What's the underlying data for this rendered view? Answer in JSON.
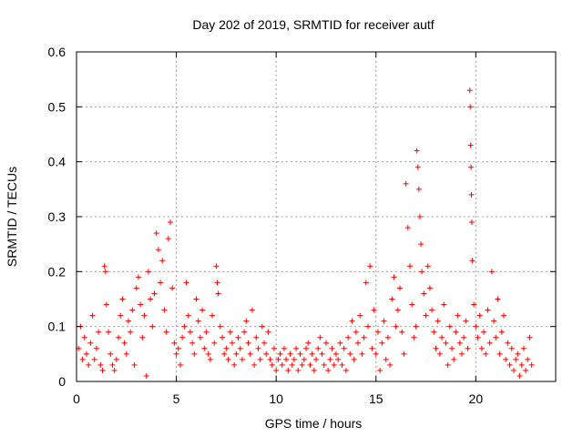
{
  "chart_data": {
    "type": "scatter",
    "title": "Day 202 of 2019, SRMTID for receiver autf",
    "xlabel": "GPS time / hours",
    "ylabel": "SRMTID / TECUs",
    "xlim": [
      0,
      24
    ],
    "ylim": [
      0,
      0.6
    ],
    "xticks": [
      0,
      5,
      10,
      15,
      20
    ],
    "xtick_labels": [
      "0",
      "5",
      "10",
      "15",
      "20"
    ],
    "yticks": [
      0,
      0.1,
      0.2,
      0.3,
      0.4,
      0.5,
      0.6
    ],
    "ytick_labels": [
      "0",
      "0.1",
      "0.2",
      "0.3",
      "0.4",
      "0.5",
      "0.6"
    ],
    "grid": true,
    "marker": "+",
    "series": [
      {
        "name": "SRMTID",
        "color": "#ff0000",
        "points": [
          [
            0.1,
            0.06
          ],
          [
            0.2,
            0.1
          ],
          [
            0.3,
            0.04
          ],
          [
            0.4,
            0.08
          ],
          [
            0.5,
            0.05
          ],
          [
            0.6,
            0.03
          ],
          [
            0.7,
            0.07
          ],
          [
            0.8,
            0.12
          ],
          [
            0.9,
            0.04
          ],
          [
            1.0,
            0.06
          ],
          [
            1.1,
            0.09
          ],
          [
            1.2,
            0.03
          ],
          [
            1.3,
            0.02
          ],
          [
            1.4,
            0.21
          ],
          [
            1.45,
            0.2
          ],
          [
            1.5,
            0.14
          ],
          [
            1.6,
            0.09
          ],
          [
            1.7,
            0.05
          ],
          [
            1.8,
            0.03
          ],
          [
            1.9,
            0.02
          ],
          [
            2.0,
            0.04
          ],
          [
            2.1,
            0.08
          ],
          [
            2.2,
            0.12
          ],
          [
            2.3,
            0.15
          ],
          [
            2.4,
            0.07
          ],
          [
            2.5,
            0.05
          ],
          [
            2.6,
            0.11
          ],
          [
            2.7,
            0.09
          ],
          [
            2.8,
            0.13
          ],
          [
            2.9,
            0.03
          ],
          [
            3.0,
            0.17
          ],
          [
            3.1,
            0.19
          ],
          [
            3.2,
            0.14
          ],
          [
            3.3,
            0.08
          ],
          [
            3.4,
            0.12
          ],
          [
            3.5,
            0.01
          ],
          [
            3.6,
            0.2
          ],
          [
            3.7,
            0.15
          ],
          [
            3.8,
            0.1
          ],
          [
            3.9,
            0.16
          ],
          [
            4.0,
            0.27
          ],
          [
            4.1,
            0.24
          ],
          [
            4.2,
            0.18
          ],
          [
            4.3,
            0.22
          ],
          [
            4.4,
            0.13
          ],
          [
            4.5,
            0.09
          ],
          [
            4.6,
            0.26
          ],
          [
            4.7,
            0.29
          ],
          [
            4.8,
            0.17
          ],
          [
            4.9,
            0.07
          ],
          [
            5.0,
            0.05
          ],
          [
            5.1,
            0.06
          ],
          [
            5.2,
            0.03
          ],
          [
            5.3,
            0.08
          ],
          [
            5.4,
            0.1
          ],
          [
            5.5,
            0.18
          ],
          [
            5.6,
            0.12
          ],
          [
            5.7,
            0.09
          ],
          [
            5.8,
            0.07
          ],
          [
            5.9,
            0.05
          ],
          [
            6.0,
            0.15
          ],
          [
            6.1,
            0.11
          ],
          [
            6.2,
            0.08
          ],
          [
            6.3,
            0.13
          ],
          [
            6.4,
            0.06
          ],
          [
            6.5,
            0.09
          ],
          [
            6.6,
            0.05
          ],
          [
            6.7,
            0.04
          ],
          [
            6.8,
            0.12
          ],
          [
            6.9,
            0.07
          ],
          [
            7.0,
            0.21
          ],
          [
            7.05,
            0.18
          ],
          [
            7.1,
            0.16
          ],
          [
            7.2,
            0.1
          ],
          [
            7.3,
            0.08
          ],
          [
            7.4,
            0.05
          ],
          [
            7.5,
            0.06
          ],
          [
            7.6,
            0.04
          ],
          [
            7.7,
            0.09
          ],
          [
            7.8,
            0.07
          ],
          [
            7.9,
            0.03
          ],
          [
            8.0,
            0.05
          ],
          [
            8.1,
            0.08
          ],
          [
            8.2,
            0.06
          ],
          [
            8.3,
            0.04
          ],
          [
            8.4,
            0.09
          ],
          [
            8.5,
            0.11
          ],
          [
            8.6,
            0.07
          ],
          [
            8.7,
            0.05
          ],
          [
            8.8,
            0.13
          ],
          [
            8.9,
            0.03
          ],
          [
            9.0,
            0.08
          ],
          [
            9.1,
            0.06
          ],
          [
            9.2,
            0.04
          ],
          [
            9.3,
            0.1
          ],
          [
            9.4,
            0.07
          ],
          [
            9.5,
            0.05
          ],
          [
            9.6,
            0.09
          ],
          [
            9.7,
            0.04
          ],
          [
            9.8,
            0.03
          ],
          [
            9.9,
            0.06
          ],
          [
            10.0,
            0.02
          ],
          [
            10.1,
            0.04
          ],
          [
            10.2,
            0.05
          ],
          [
            10.3,
            0.03
          ],
          [
            10.4,
            0.06
          ],
          [
            10.5,
            0.04
          ],
          [
            10.6,
            0.02
          ],
          [
            10.7,
            0.05
          ],
          [
            10.8,
            0.03
          ],
          [
            10.9,
            0.04
          ],
          [
            11.0,
            0.06
          ],
          [
            11.1,
            0.02
          ],
          [
            11.2,
            0.05
          ],
          [
            11.3,
            0.03
          ],
          [
            11.4,
            0.04
          ],
          [
            11.5,
            0.06
          ],
          [
            11.6,
            0.07
          ],
          [
            11.7,
            0.03
          ],
          [
            11.8,
            0.05
          ],
          [
            11.9,
            0.02
          ],
          [
            12.0,
            0.04
          ],
          [
            12.1,
            0.06
          ],
          [
            12.2,
            0.08
          ],
          [
            12.3,
            0.05
          ],
          [
            12.4,
            0.03
          ],
          [
            12.5,
            0.07
          ],
          [
            12.6,
            0.02
          ],
          [
            12.7,
            0.04
          ],
          [
            12.8,
            0.06
          ],
          [
            12.9,
            0.03
          ],
          [
            13.0,
            0.05
          ],
          [
            13.1,
            0.04
          ],
          [
            13.2,
            0.07
          ],
          [
            13.3,
            0.03
          ],
          [
            13.4,
            0.06
          ],
          [
            13.5,
            0.02
          ],
          [
            13.6,
            0.08
          ],
          [
            13.7,
            0.05
          ],
          [
            13.8,
            0.11
          ],
          [
            13.9,
            0.04
          ],
          [
            14.0,
            0.09
          ],
          [
            14.1,
            0.07
          ],
          [
            14.2,
            0.12
          ],
          [
            14.3,
            0.05
          ],
          [
            14.4,
            0.08
          ],
          [
            14.5,
            0.18
          ],
          [
            14.6,
            0.1
          ],
          [
            14.7,
            0.21
          ],
          [
            14.8,
            0.06
          ],
          [
            14.9,
            0.13
          ],
          [
            15.0,
            0.05
          ],
          [
            15.1,
            0.09
          ],
          [
            15.2,
            0.02
          ],
          [
            15.3,
            0.07
          ],
          [
            15.4,
            0.11
          ],
          [
            15.5,
            0.04
          ],
          [
            15.6,
            0.08
          ],
          [
            15.7,
            0.03
          ],
          [
            15.8,
            0.15
          ],
          [
            15.9,
            0.19
          ],
          [
            16.0,
            0.1
          ],
          [
            16.1,
            0.13
          ],
          [
            16.2,
            0.17
          ],
          [
            16.3,
            0.09
          ],
          [
            16.4,
            0.05
          ],
          [
            16.5,
            0.36
          ],
          [
            16.6,
            0.28
          ],
          [
            16.7,
            0.21
          ],
          [
            16.8,
            0.14
          ],
          [
            16.9,
            0.08
          ],
          [
            17.0,
            0.1
          ],
          [
            17.05,
            0.42
          ],
          [
            17.1,
            0.39
          ],
          [
            17.15,
            0.35
          ],
          [
            17.2,
            0.3
          ],
          [
            17.25,
            0.25
          ],
          [
            17.3,
            0.2
          ],
          [
            17.4,
            0.16
          ],
          [
            17.5,
            0.12
          ],
          [
            17.6,
            0.21
          ],
          [
            17.7,
            0.17
          ],
          [
            17.8,
            0.13
          ],
          [
            17.9,
            0.09
          ],
          [
            18.0,
            0.06
          ],
          [
            18.1,
            0.11
          ],
          [
            18.2,
            0.05
          ],
          [
            18.3,
            0.08
          ],
          [
            18.4,
            0.14
          ],
          [
            18.5,
            0.07
          ],
          [
            18.6,
            0.03
          ],
          [
            18.7,
            0.1
          ],
          [
            18.8,
            0.06
          ],
          [
            18.9,
            0.04
          ],
          [
            19.0,
            0.09
          ],
          [
            19.1,
            0.12
          ],
          [
            19.2,
            0.07
          ],
          [
            19.3,
            0.05
          ],
          [
            19.4,
            0.08
          ],
          [
            19.5,
            0.11
          ],
          [
            19.6,
            0.06
          ],
          [
            19.7,
            0.53
          ],
          [
            19.72,
            0.5
          ],
          [
            19.74,
            0.43
          ],
          [
            19.76,
            0.39
          ],
          [
            19.78,
            0.34
          ],
          [
            19.8,
            0.29
          ],
          [
            19.82,
            0.22
          ],
          [
            19.9,
            0.14
          ],
          [
            20.0,
            0.1
          ],
          [
            20.1,
            0.08
          ],
          [
            20.2,
            0.12
          ],
          [
            20.3,
            0.06
          ],
          [
            20.4,
            0.09
          ],
          [
            20.5,
            0.05
          ],
          [
            20.6,
            0.13
          ],
          [
            20.7,
            0.07
          ],
          [
            20.8,
            0.2
          ],
          [
            20.9,
            0.11
          ],
          [
            21.0,
            0.08
          ],
          [
            21.1,
            0.15
          ],
          [
            21.2,
            0.05
          ],
          [
            21.3,
            0.09
          ],
          [
            21.4,
            0.12
          ],
          [
            21.5,
            0.04
          ],
          [
            21.6,
            0.07
          ],
          [
            21.7,
            0.03
          ],
          [
            21.8,
            0.06
          ],
          [
            21.9,
            0.02
          ],
          [
            22.0,
            0.04
          ],
          [
            22.1,
            0.05
          ],
          [
            22.2,
            0.01
          ],
          [
            22.3,
            0.03
          ],
          [
            22.4,
            0.06
          ],
          [
            22.5,
            0.02
          ],
          [
            22.6,
            0.04
          ],
          [
            22.7,
            0.08
          ],
          [
            22.8,
            0.03
          ]
        ]
      }
    ]
  }
}
